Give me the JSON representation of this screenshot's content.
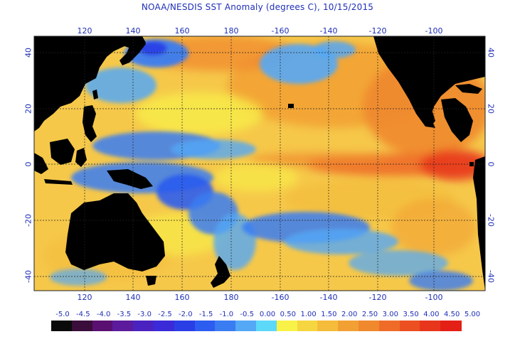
{
  "title": "NOAA/NESDIS SST Anomaly (degrees C), 10/15/2015",
  "longitude_labels": [
    "120",
    "140",
    "160",
    "180",
    "-160",
    "-140",
    "-120",
    "-100"
  ],
  "latitude_labels": [
    "40",
    "20",
    "0",
    "-20",
    "-40"
  ],
  "legend": {
    "labels": [
      "-5.0",
      "-4.5",
      "-4.0",
      "-3.5",
      "-3.0",
      "-2.5",
      "-2.0",
      "-1.5",
      "-1.0",
      "-0.5",
      "0.00",
      "0.50",
      "1.00",
      "1.50",
      "2.00",
      "2.50",
      "3.00",
      "3.50",
      "4.00",
      "4.50",
      "5.00"
    ],
    "colors": [
      "#0a0a0a",
      "#3a0d3a",
      "#5a1070",
      "#5c1a9c",
      "#4a22c0",
      "#3a2ad8",
      "#2a3ee6",
      "#2c5cf0",
      "#3a7cf2",
      "#54a8f6",
      "#5cd8f8",
      "#f8f248",
      "#f6d640",
      "#f4bc3a",
      "#f2a034",
      "#f0882e",
      "#ee6c28",
      "#ec5022",
      "#e8361c",
      "#e42016"
    ]
  },
  "colors": {
    "land": "#000000",
    "text": "#1f2fb8",
    "grid": "#222222",
    "warm_water": "#f2a034",
    "cool_water": "#3a7cf2",
    "hot_water": "#e8361c"
  }
}
